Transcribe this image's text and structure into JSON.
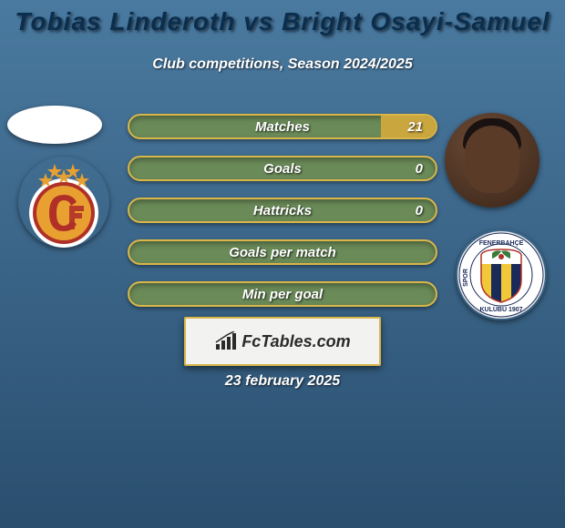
{
  "header": {
    "title": "Tobias Linderoth vs Bright Osayi-Samuel",
    "title_color": "#0b2e4f",
    "title_fontsize": 28,
    "subtitle": "Club competitions, Season 2024/2025",
    "subtitle_fontsize": 16
  },
  "background": {
    "gradient_from": "#4a7aa0",
    "gradient_to": "#2a4e6e"
  },
  "stats": {
    "label_fontsize": 15,
    "value_fontsize": 15,
    "bar_bg": "#6a8a58",
    "bar_border": "#d8b64a",
    "bar_highlight": "#c9a63e",
    "rows": [
      {
        "label": "Matches",
        "left": "",
        "right": "21",
        "right_fill_pct": 18
      },
      {
        "label": "Goals",
        "left": "",
        "right": "0",
        "right_fill_pct": 0
      },
      {
        "label": "Hattricks",
        "left": "",
        "right": "0",
        "right_fill_pct": 0
      },
      {
        "label": "Goals per match",
        "left": "",
        "right": "",
        "right_fill_pct": 0
      },
      {
        "label": "Min per goal",
        "left": "",
        "right": "",
        "right_fill_pct": 0
      }
    ]
  },
  "clubs": {
    "left": {
      "name": "galatasaray",
      "bg": "#ffffff",
      "ring": "#b03028",
      "inner": "#e8a030",
      "center": "#b03028"
    },
    "right": {
      "name": "fenerbahce",
      "bg": "#e8e8e8",
      "ring_outer": "#ffffff",
      "ring_text": "#1a2a5a",
      "stripe_navy": "#1a2a5a",
      "stripe_yellow": "#f0c838"
    }
  },
  "logo": {
    "bg": "#f2f3f1",
    "border": "#d8b64a",
    "text": "FcTables.com",
    "text_color": "#2a2a2a",
    "fontsize": 18,
    "icon_color": "#2a2a2a"
  },
  "date": {
    "text": "23 february 2025",
    "fontsize": 16
  }
}
